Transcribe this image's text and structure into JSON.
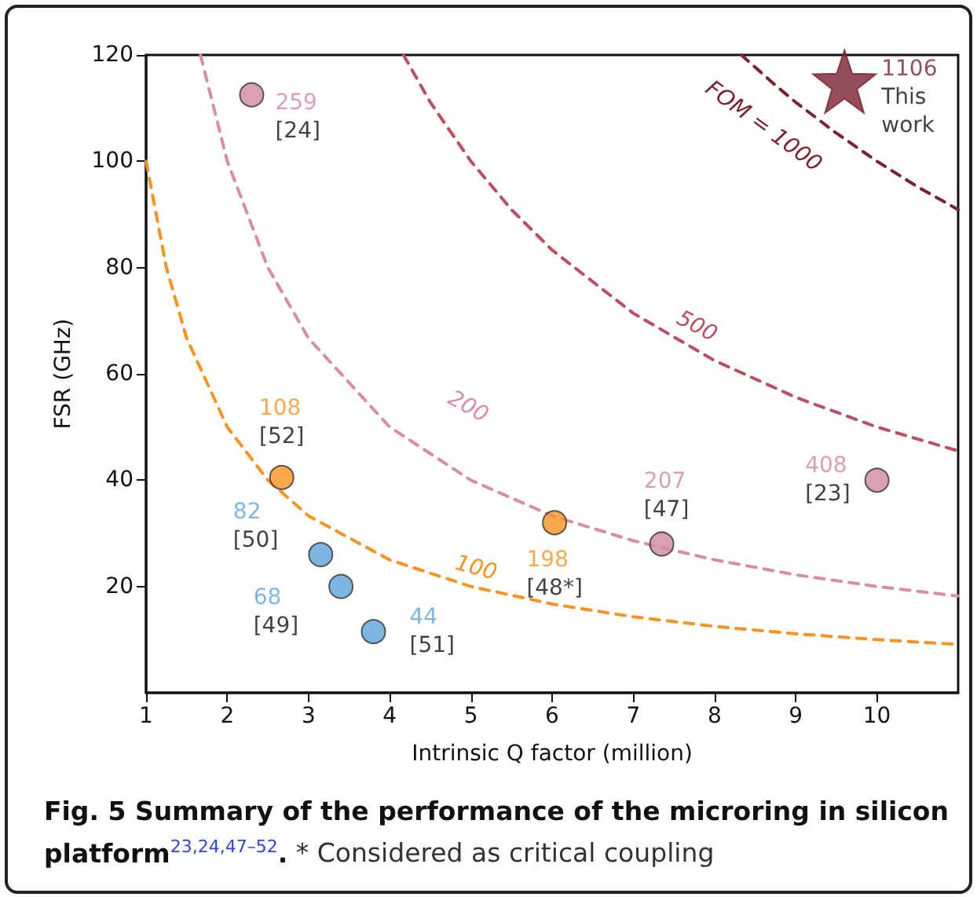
{
  "chart_data": {
    "type": "scatter",
    "title": "Fig. 5 Summary of the performance of the microring in silicon platform$^{23,24,47–52}$.",
    "annotations": [
      "* Considered as critical coupling",
      {
        "text": "259\n[24]",
        "x": 2.3,
        "y": 112.5
      },
      {
        "text": "207\n[47]",
        "x": 7.35,
        "y": 28
      },
      {
        "text": "408\n[23]",
        "x": 10,
        "y": 40
      },
      {
        "text": "108\n[52]",
        "x": 2.67,
        "y": 40.5
      },
      {
        "text": "198\n[48*]",
        "x": 6.03,
        "y": 32
      },
      {
        "text": "82\n[50]",
        "x": 3.15,
        "y": 26
      },
      {
        "text": "68\n[49]",
        "x": 3.4,
        "y": 20
      },
      {
        "text": "44\n[51]",
        "x": 3.8,
        "y": 11.5
      },
      {
        "text": "1106\nThis\nwork",
        "x": 9.6,
        "y": 115
      }
    ],
    "xlabel": "Intrinsic Q factor (million)",
    "ylabel": "FSR (GHz)",
    "xlim": [
      1,
      11
    ],
    "xticks": [
      1,
      2,
      3,
      4,
      5,
      6,
      7,
      8,
      9,
      10
    ],
    "ylim": [
      0,
      120
    ],
    "yticks": [
      20,
      40,
      60,
      80,
      100,
      120
    ],
    "series": [
      {
        "type": "line",
        "name": "100",
        "color": "#f7931e",
        "marker": "none",
        "line_style": "dashed",
        "x": [
          1,
          1.25,
          1.5,
          2,
          2.5,
          3,
          4,
          5,
          6,
          7,
          8,
          9,
          10,
          11
        ],
        "values": [
          100,
          80,
          66.7,
          50,
          40,
          33.3,
          25,
          20,
          16.7,
          14.3,
          12.5,
          11.1,
          10,
          9.1
        ]
      },
      {
        "type": "line",
        "name": "200",
        "color": "#d98ca5",
        "marker": "none",
        "line_style": "dashed",
        "x": [
          1.67,
          2,
          2.5,
          3,
          4,
          5,
          6,
          7,
          8,
          9,
          10,
          11
        ],
        "values": [
          120,
          100,
          80,
          66.7,
          50,
          40,
          33.3,
          28.6,
          25,
          22.2,
          20,
          18.2
        ]
      },
      {
        "type": "line",
        "name": "500",
        "color": "#bf4d62",
        "marker": "none",
        "line_style": "dashed",
        "x": [
          4.17,
          4.5,
          5,
          5.5,
          6,
          7,
          8,
          9,
          10,
          11
        ],
        "values": [
          120,
          111.1,
          100,
          90.9,
          83.3,
          71.4,
          62.5,
          55.6,
          50,
          45.5
        ]
      },
      {
        "type": "line",
        "name": "FOM = 1000",
        "color": "#7b2230",
        "marker": "none",
        "line_style": "dashed",
        "x": [
          8.33,
          8.75,
          9,
          9.5,
          10,
          10.5,
          11
        ],
        "values": [
          120,
          114.3,
          111.1,
          105.3,
          100,
          95.2,
          90.9
        ]
      },
      {
        "color": "#cf88a0",
        "marker": "circle",
        "x": [
          2.3,
          7.35,
          10
        ],
        "values": [
          112.5,
          28,
          40
        ]
      },
      {
        "color": "#f7931e",
        "marker": "circle",
        "x": [
          2.67,
          6.03
        ],
        "values": [
          40.5,
          32
        ]
      },
      {
        "color": "#5da5da",
        "marker": "circle",
        "x": [
          3.15,
          3.4,
          3.8
        ],
        "values": [
          26,
          20,
          11.5
        ]
      },
      {
        "color": "#7b2230",
        "marker": "star",
        "x": [
          9.6
        ],
        "values": [
          115
        ]
      }
    ]
  }
}
